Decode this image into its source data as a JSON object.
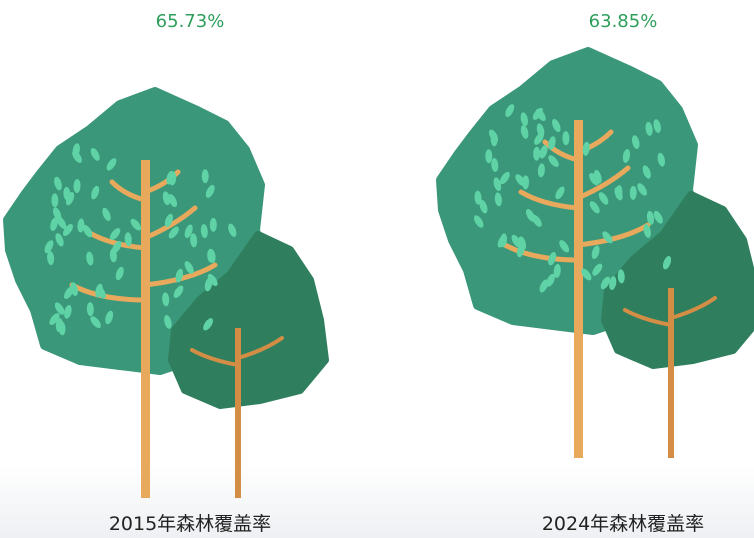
{
  "items": [
    {
      "value_label": "65.73%",
      "label": "2015年森林覆盖率"
    },
    {
      "value_label": "63.85%",
      "label": "2024年森林覆盖率"
    }
  ]
}
